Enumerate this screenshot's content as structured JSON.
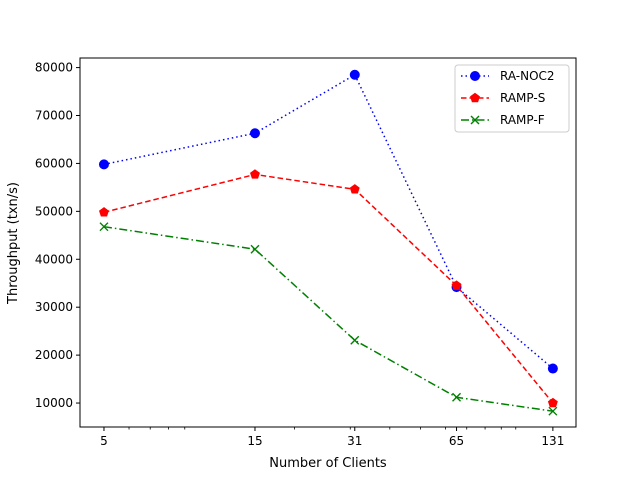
{
  "chart_data": {
    "type": "line",
    "x_scale": "log",
    "xlabel": "Number of Clients",
    "ylabel": "Throughput (txn/s)",
    "x_ticks": [
      5,
      15,
      31,
      65,
      131
    ],
    "xlim": [
      4.2,
      155
    ],
    "y_ticks": [
      10000,
      20000,
      30000,
      40000,
      50000,
      60000,
      70000,
      80000
    ],
    "ylim": [
      5000,
      82000
    ],
    "legend_position": "top-right",
    "grid": false,
    "x": [
      5,
      15,
      31,
      65,
      131
    ],
    "series": [
      {
        "name": "RA-NOC2",
        "values": [
          59800,
          66300,
          78500,
          34200,
          17200
        ],
        "color": "#0000ff",
        "linestyle": "dotted",
        "marker": "circle"
      },
      {
        "name": "RAMP-S",
        "values": [
          49800,
          57700,
          54600,
          34500,
          10000
        ],
        "color": "#ff0000",
        "linestyle": "dashed",
        "marker": "pentagon"
      },
      {
        "name": "RAMP-F",
        "values": [
          46800,
          42100,
          23100,
          11200,
          8300
        ],
        "color": "#008000",
        "linestyle": "dashdot",
        "marker": "x"
      }
    ]
  }
}
